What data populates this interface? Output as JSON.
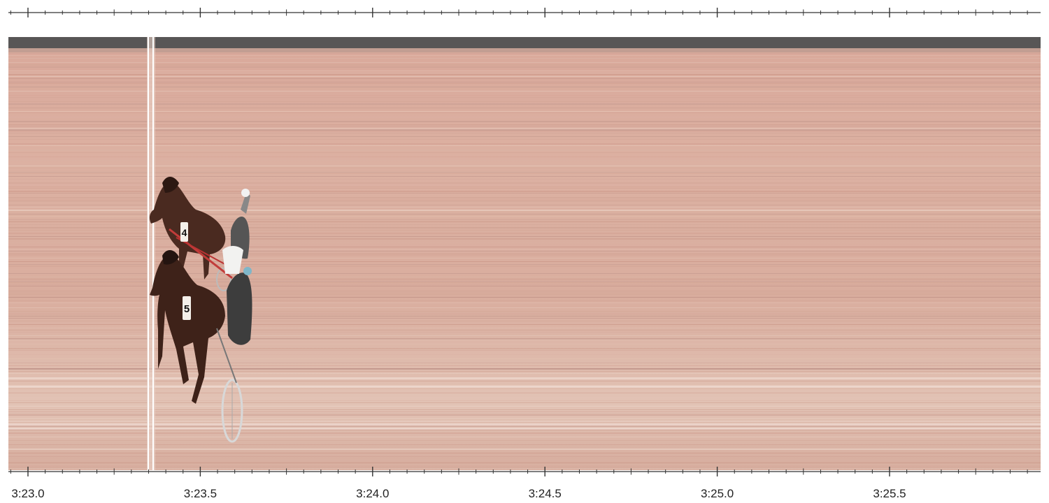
{
  "photo": {
    "subject": "Harness racing photo-finish image",
    "colors": {
      "track_base": "#dcb4a4",
      "track_top_band": "#585656",
      "finish_line": "#ffffff",
      "timeline": "#333333"
    },
    "horses": [
      {
        "saddle_number": "4"
      },
      {
        "saddle_number": "5"
      }
    ]
  },
  "timeline": {
    "major_labels": [
      "3:23.0",
      "3:23.5",
      "3:24.0",
      "3:24.5",
      "3:25.0",
      "3:25.5"
    ],
    "minor_ticks_per_major": 10,
    "finish_time": 203.35
  }
}
